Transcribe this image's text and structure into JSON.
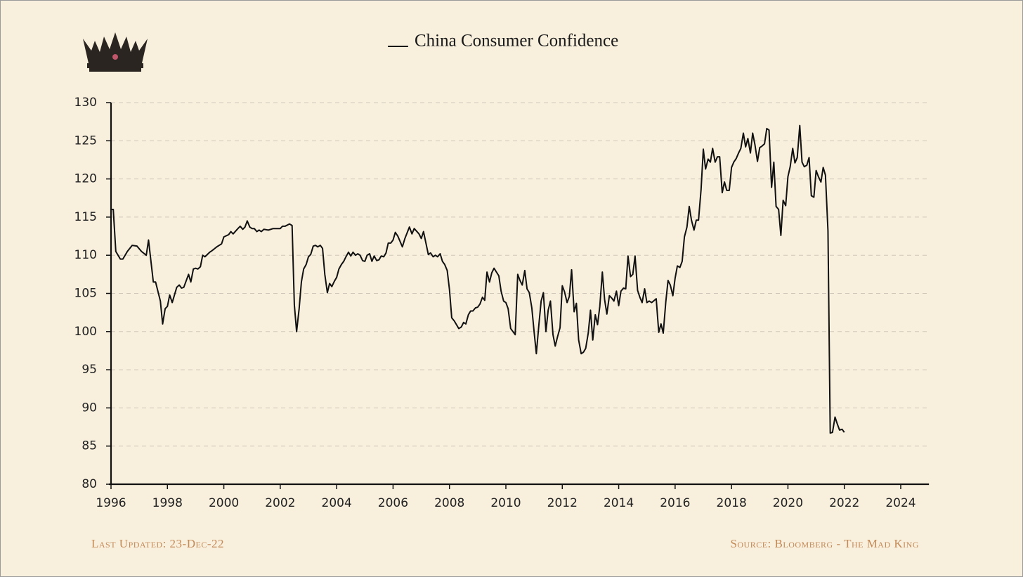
{
  "chart_data": {
    "type": "line",
    "legend_label": "China Consumer Confidence",
    "footer_left": "Last Updated: 23-Dec-22",
    "footer_right": "Source: Bloomberg - The Mad King",
    "x": [
      1996.0,
      1996.08,
      1996.17,
      1996.33,
      1996.42,
      1996.58,
      1996.75,
      1996.92,
      1997.08,
      1997.25,
      1997.33,
      1997.5,
      1997.58,
      1997.75,
      1997.83,
      1997.92,
      1998.0,
      1998.08,
      1998.17,
      1998.33,
      1998.42,
      1998.5,
      1998.58,
      1998.75,
      1998.83,
      1998.92,
      1999.0,
      1999.08,
      1999.17,
      1999.25,
      1999.33,
      1999.5,
      1999.58,
      1999.75,
      1999.92,
      2000.0,
      2000.17,
      2000.25,
      2000.33,
      2000.5,
      2000.58,
      2000.67,
      2000.75,
      2000.83,
      2000.92,
      2001.0,
      2001.08,
      2001.17,
      2001.25,
      2001.33,
      2001.42,
      2001.58,
      2001.75,
      2002.0,
      2002.08,
      2002.17,
      2002.33,
      2002.42,
      2002.5,
      2002.58,
      2002.67,
      2002.75,
      2002.83,
      2002.92,
      2003.0,
      2003.08,
      2003.17,
      2003.25,
      2003.33,
      2003.42,
      2003.5,
      2003.58,
      2003.67,
      2003.75,
      2003.83,
      2003.92,
      2004.0,
      2004.08,
      2004.17,
      2004.25,
      2004.33,
      2004.42,
      2004.5,
      2004.58,
      2004.67,
      2004.75,
      2004.83,
      2004.92,
      2005.0,
      2005.08,
      2005.17,
      2005.25,
      2005.33,
      2005.42,
      2005.5,
      2005.58,
      2005.67,
      2005.75,
      2005.83,
      2005.92,
      2006.0,
      2006.08,
      2006.17,
      2006.33,
      2006.42,
      2006.58,
      2006.67,
      2006.75,
      2006.92,
      2007.0,
      2007.08,
      2007.25,
      2007.33,
      2007.42,
      2007.5,
      2007.58,
      2007.67,
      2007.75,
      2007.83,
      2007.92,
      2008.0,
      2008.08,
      2008.17,
      2008.33,
      2008.42,
      2008.5,
      2008.58,
      2008.67,
      2008.75,
      2008.83,
      2008.92,
      2009.0,
      2009.08,
      2009.17,
      2009.25,
      2009.33,
      2009.42,
      2009.5,
      2009.58,
      2009.75,
      2009.83,
      2009.92,
      2010.0,
      2010.08,
      2010.17,
      2010.33,
      2010.42,
      2010.5,
      2010.58,
      2010.67,
      2010.75,
      2010.83,
      2010.92,
      2011.0,
      2011.08,
      2011.17,
      2011.25,
      2011.33,
      2011.42,
      2011.5,
      2011.58,
      2011.67,
      2011.75,
      2011.83,
      2011.92,
      2012.0,
      2012.08,
      2012.17,
      2012.25,
      2012.33,
      2012.42,
      2012.5,
      2012.58,
      2012.67,
      2012.75,
      2012.83,
      2012.92,
      2013.0,
      2013.08,
      2013.17,
      2013.25,
      2013.33,
      2013.42,
      2013.5,
      2013.58,
      2013.67,
      2013.75,
      2013.83,
      2013.92,
      2014.0,
      2014.08,
      2014.17,
      2014.25,
      2014.33,
      2014.42,
      2014.5,
      2014.58,
      2014.67,
      2014.75,
      2014.83,
      2014.92,
      2015.0,
      2015.08,
      2015.17,
      2015.33,
      2015.42,
      2015.5,
      2015.58,
      2015.67,
      2015.75,
      2015.83,
      2015.92,
      2016.0,
      2016.08,
      2016.17,
      2016.25,
      2016.33,
      2016.42,
      2016.5,
      2016.58,
      2016.67,
      2016.75,
      2016.83,
      2016.92,
      2017.0,
      2017.08,
      2017.17,
      2017.25,
      2017.33,
      2017.42,
      2017.5,
      2017.58,
      2017.67,
      2017.75,
      2017.83,
      2017.92,
      2018.0,
      2018.08,
      2018.17,
      2018.25,
      2018.33,
      2018.42,
      2018.5,
      2018.58,
      2018.67,
      2018.75,
      2018.83,
      2018.92,
      2019.0,
      2019.08,
      2019.17,
      2019.25,
      2019.33,
      2019.42,
      2019.5,
      2019.58,
      2019.67,
      2019.75,
      2019.83,
      2019.92,
      2020.0,
      2020.08,
      2020.17,
      2020.25,
      2020.33,
      2020.42,
      2020.5,
      2020.58,
      2020.67,
      2020.75,
      2020.83,
      2020.92,
      2021.0,
      2021.08,
      2021.17,
      2021.25,
      2021.33,
      2021.42,
      2021.5,
      2021.58,
      2021.67,
      2021.75,
      2021.83,
      2021.92,
      2022.0
    ],
    "series": [
      {
        "name": "China Consumer Confidence",
        "color": "#111111",
        "values": [
          116,
          116,
          110.5,
          109.5,
          109.5,
          110.5,
          111.3,
          111.2,
          110.5,
          110,
          112,
          106.5,
          106.5,
          104,
          101,
          103,
          103.3,
          104.8,
          103.8,
          105.8,
          106.1,
          105.7,
          105.8,
          107.5,
          106.5,
          108.2,
          108.3,
          108.2,
          108.5,
          110,
          109.8,
          110.4,
          110.6,
          111.1,
          111.5,
          112.4,
          112.7,
          113.1,
          112.8,
          113.5,
          113.8,
          113.4,
          113.7,
          114.5,
          113.7,
          113.5,
          113.5,
          113.1,
          113.3,
          113.1,
          113.4,
          113.3,
          113.5,
          113.5,
          113.8,
          113.8,
          114.1,
          113.9,
          103.5,
          100,
          103,
          106.5,
          108.2,
          108.8,
          109.8,
          110.1,
          111.2,
          111.3,
          111.1,
          111.3,
          110.9,
          107.5,
          105.1,
          106.3,
          105.9,
          106.6,
          107.1,
          108.2,
          108.8,
          109.2,
          109.8,
          110.4,
          109.9,
          110.4,
          110,
          110.2,
          110,
          109.3,
          109.2,
          110,
          110.2,
          109.2,
          109.9,
          109.3,
          109.4,
          109.9,
          109.8,
          110.3,
          111.6,
          111.6,
          112,
          113,
          112.5,
          111.1,
          112.2,
          113.7,
          112.8,
          113.5,
          112.8,
          112.2,
          113.1,
          110.1,
          110.3,
          109.8,
          110,
          109.8,
          110.2,
          109.2,
          108.8,
          108,
          105.5,
          101.8,
          101.4,
          100.4,
          100.6,
          101.2,
          101,
          102.2,
          102.7,
          102.7,
          103.1,
          103.2,
          103.6,
          104.5,
          104.1,
          107.8,
          106.5,
          107.7,
          108.3,
          107.3,
          105.3,
          104,
          103.8,
          103,
          100.4,
          99.6,
          107.5,
          106.7,
          106.1,
          108,
          105.6,
          105.1,
          103.1,
          100,
          97.1,
          100.9,
          104,
          105.1,
          100,
          102.8,
          104,
          99.6,
          98.1,
          99.3,
          100.5,
          106,
          105.2,
          103.8,
          104.6,
          108.1,
          102.6,
          103.7,
          98.9,
          97.1,
          97.3,
          97.8,
          99.8,
          102.8,
          98.9,
          102.2,
          100.9,
          103.3,
          107.8,
          104.2,
          102.3,
          104.7,
          104.4,
          104,
          105.3,
          103.4,
          105.3,
          105.7,
          105.6,
          109.9,
          107.2,
          107.5,
          109.9,
          105.4,
          104.5,
          103.8,
          105.6,
          103.8,
          104,
          103.8,
          104.3,
          99.9,
          101,
          99.8,
          103.9,
          106.7,
          106.1,
          104.7,
          107,
          108.6,
          108.4,
          109.2,
          112.4,
          113.7,
          116.4,
          114.6,
          113.3,
          114.6,
          114.6,
          118.6,
          123.9,
          121.3,
          122.6,
          122.2,
          124,
          122.2,
          122.9,
          122.9,
          118.2,
          119.6,
          118.5,
          118.5,
          121.5,
          122.2,
          122.7,
          123.4,
          124,
          126,
          124.2,
          125.3,
          123.4,
          126,
          124.5,
          122.3,
          124.1,
          124.3,
          124.6,
          126.6,
          126.4,
          118.9,
          122.2,
          116.4,
          116,
          112.6,
          117.2,
          116.5,
          120.3,
          121.6,
          124,
          122.1,
          122.8,
          127,
          122.2,
          121.6,
          121.8,
          122.8,
          117.8,
          117.6,
          121.1,
          120.3,
          119.6,
          121.5,
          120.5,
          113.2,
          86.7,
          86.8,
          88.8,
          87.9,
          87.1,
          87.2,
          86.8
        ]
      }
    ],
    "xlim": [
      1996,
      2025
    ],
    "xticks": [
      1996,
      1998,
      2000,
      2002,
      2004,
      2006,
      2008,
      2010,
      2012,
      2014,
      2016,
      2018,
      2020,
      2022,
      2024
    ],
    "ylim": [
      80,
      130
    ],
    "yticks": [
      80,
      85,
      90,
      95,
      100,
      105,
      110,
      115,
      120,
      125,
      130
    ],
    "grid": true
  }
}
